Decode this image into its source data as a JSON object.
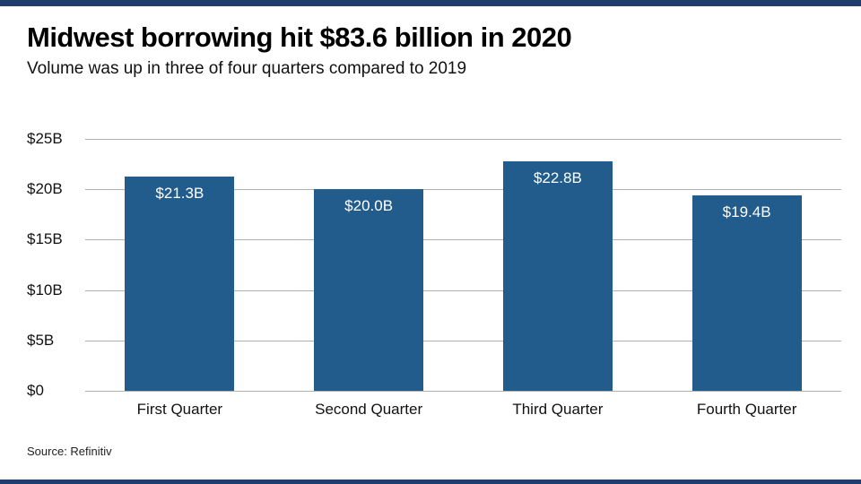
{
  "colors": {
    "bar": "#215c8c",
    "accent_strip": "#1f3d6d",
    "gridline": "#b0b0b0"
  },
  "header": {
    "title": "Midwest borrowing hit $83.6 billion in 2020",
    "subtitle": "Volume was up in three of four quarters compared to 2019"
  },
  "source": "Source: Refinitiv",
  "chart_data": {
    "type": "bar",
    "title": "Midwest borrowing hit $83.6 billion in 2020",
    "subtitle": "Volume was up in three of four quarters compared to 2019",
    "categories": [
      "First Quarter",
      "Second Quarter",
      "Third Quarter",
      "Fourth Quarter"
    ],
    "values": [
      21.3,
      20.0,
      22.8,
      19.4
    ],
    "value_labels": [
      "$21.3B",
      "$20.0B",
      "$22.8B",
      "$19.4B"
    ],
    "ylim": [
      0,
      25
    ],
    "yticks": [
      {
        "value": 25,
        "label": "$25B"
      },
      {
        "value": 20,
        "label": "$20B"
      },
      {
        "value": 15,
        "label": "$15B"
      },
      {
        "value": 10,
        "label": "$10B"
      },
      {
        "value": 5,
        "label": "$5B"
      },
      {
        "value": 0,
        "label": "$0"
      }
    ],
    "grid": true,
    "legend": "none",
    "xlabel": "",
    "ylabel": ""
  }
}
